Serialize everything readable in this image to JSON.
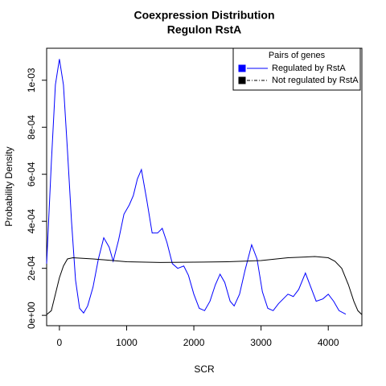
{
  "chart_data": {
    "type": "line",
    "title": "Coexpression Distribution",
    "subtitle": "Regulon RstA",
    "x_label": "SCR",
    "y_label": "Probability Density",
    "legend_title": "Pairs of genes",
    "legend_position": "top-right",
    "xlim": [
      -190,
      4500
    ],
    "ylim": [
      -4.4e-05,
      0.001136
    ],
    "xticks": [
      0,
      1000,
      2000,
      3000,
      4000
    ],
    "yticks": [
      {
        "value": 0,
        "label": "0e+00"
      },
      {
        "value": 0.0002,
        "label": "2e-04"
      },
      {
        "value": 0.0004,
        "label": "4e-04"
      },
      {
        "value": 0.0006,
        "label": "6e-04"
      },
      {
        "value": 0.0008,
        "label": "8e-04"
      },
      {
        "value": 0.001,
        "label": "1e-03"
      }
    ],
    "series": [
      {
        "name": "Regulated by  RstA",
        "color": "#0000ff",
        "x": [
          -190,
          -120,
          -60,
          0,
          60,
          120,
          180,
          240,
          300,
          360,
          420,
          500,
          580,
          660,
          740,
          800,
          880,
          960,
          1040,
          1100,
          1160,
          1220,
          1300,
          1380,
          1460,
          1530,
          1600,
          1680,
          1760,
          1850,
          1920,
          2000,
          2080,
          2160,
          2240,
          2320,
          2390,
          2460,
          2540,
          2600,
          2680,
          2760,
          2860,
          2940,
          3020,
          3100,
          3180,
          3260,
          3400,
          3480,
          3560,
          3660,
          3740,
          3820,
          3920,
          4000,
          4080,
          4160,
          4260
        ],
        "values": [
          0.00022,
          0.00065,
          0.00098,
          0.00109,
          0.00098,
          0.0007,
          0.0004,
          0.00015,
          3e-05,
          1e-05,
          4e-05,
          0.00012,
          0.00024,
          0.00033,
          0.00029,
          0.00023,
          0.00032,
          0.00043,
          0.00047,
          0.00051,
          0.00058,
          0.00062,
          0.00049,
          0.00035,
          0.00035,
          0.00037,
          0.00031,
          0.00022,
          0.0002,
          0.00021,
          0.00017,
          9e-05,
          3e-05,
          2e-05,
          6e-05,
          0.00013,
          0.000175,
          0.00014,
          6e-05,
          4e-05,
          9e-05,
          0.00019,
          0.0003,
          0.00024,
          0.0001,
          3e-05,
          2e-05,
          5e-05,
          9e-05,
          8e-05,
          0.00011,
          0.00018,
          0.00012,
          6e-05,
          7e-05,
          9e-05,
          6e-05,
          2e-05,
          5e-06
        ]
      },
      {
        "name": "Not regulated by  RstA",
        "color": "#000000",
        "x": [
          -190,
          -120,
          -60,
          0,
          60,
          120,
          200,
          500,
          1000,
          1500,
          2000,
          2500,
          3000,
          3400,
          3800,
          4000,
          4100,
          4200,
          4300,
          4380,
          4440,
          4500
        ],
        "values": [
          3e-06,
          2e-05,
          9e-05,
          0.00016,
          0.00021,
          0.00024,
          0.000245,
          0.00024,
          0.000228,
          0.000225,
          0.000226,
          0.000228,
          0.000233,
          0.000245,
          0.00025,
          0.000245,
          0.00023,
          0.0002,
          0.00013,
          6e-05,
          2e-05,
          3e-06
        ]
      }
    ]
  }
}
